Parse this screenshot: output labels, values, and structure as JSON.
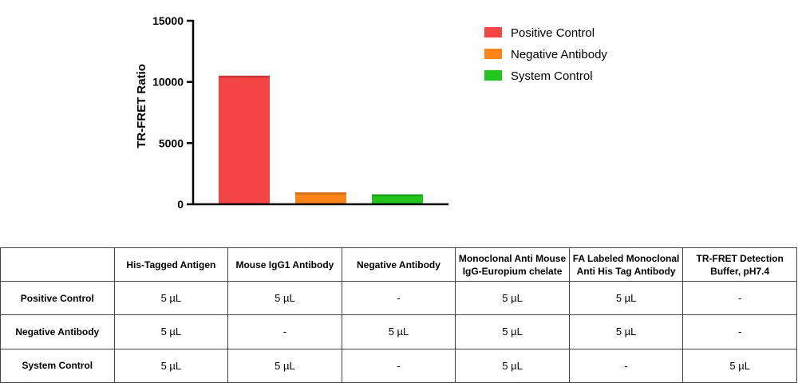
{
  "chart_data": {
    "type": "bar",
    "categories": [
      "Positive Control",
      "Negative Antibody",
      "System Control"
    ],
    "values": [
      10500,
      950,
      800
    ],
    "colors": [
      "#f44444",
      "#ff8418",
      "#22c41e"
    ],
    "title": "",
    "xlabel": "",
    "ylabel": "TR-FRET Ratio",
    "ylim": [
      0,
      15000
    ],
    "yticks": [
      0,
      5000,
      10000,
      15000
    ],
    "legend": [
      "Positive Control",
      "Negative Antibody",
      "System Control"
    ],
    "legend_position": "top-right"
  },
  "table": {
    "headers": [
      "",
      "His-Tagged Antigen",
      "Mouse IgG1 Antibody",
      "Negative Antibody",
      "Monoclonal Anti Mouse IgG-Europium chelate",
      "FA Labeled Monoclonal Anti His Tag Antibody",
      "TR-FRET Detection Buffer, pH7.4"
    ],
    "rows": [
      {
        "label": "Positive Control",
        "cells": [
          "5 µL",
          "5 µL",
          "-",
          "5 µL",
          "5 µL",
          "-"
        ]
      },
      {
        "label": "Negative Antibody",
        "cells": [
          "5 µL",
          "-",
          "5 µL",
          "5 µL",
          "5 µL",
          "-"
        ]
      },
      {
        "label": "System Control",
        "cells": [
          "5 µL",
          "5 µL",
          "-",
          "5 µL",
          "-",
          "5 µL"
        ]
      }
    ]
  }
}
